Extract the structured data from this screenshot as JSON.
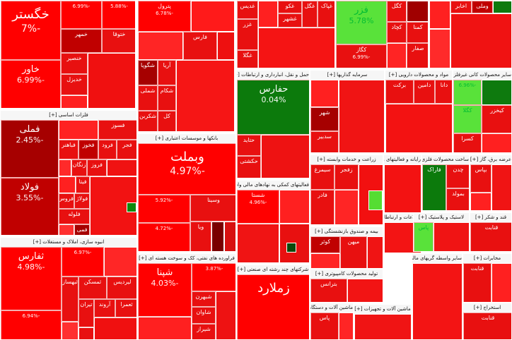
{
  "sectors": {
    "s1": {
      "title": ""
    },
    "s2": {
      "title": ""
    },
    "s3": {
      "title": "فلزات اساسی [+]"
    },
    "s4": {
      "title": "بانکها و موسسات اعتباری [+]"
    },
    "s5": {
      "title": "انبوه سازی، املاک و مستغلات [+]"
    },
    "s6": {
      "title": "فراورده های نفتی، کک و سوخت هسته ای [+]"
    },
    "s7": {
      "title": "استخراج نفت گاز و خدمات جنبی جز اکتشاف [+]"
    },
    "s8": {
      "title": "استخراج کانه های فلزی [+]"
    },
    "s9": {
      "title": "فعالیتهای کمکی به نهادهای مالی واسط [+]"
    },
    "s10": {
      "title": "شرکتهای چند رشته ای صنعتی [+]"
    },
    "s11": {
      "title": "حمل و نقل، انبارداری و ارتباطات [+]"
    },
    "s12": {
      "title": "سرمایه گذاریها [+]"
    },
    "s13": {
      "title": "مواد و محصولات دارویی [+]"
    },
    "s14": {
      "title": "سایر محصولات کانی غیرفلزی [+]"
    },
    "s15": {
      "title": "زراعت و خدمات وابسته [+]"
    },
    "s16": {
      "title": "رایانه و فعالیتهای وابسته [+]"
    },
    "s17": {
      "title": "ساخت محصولات فلزی [+]"
    },
    "s18": {
      "title": "عرضه برق، گاز [+]"
    },
    "s19": {
      "title": "اطلاعات و ارتباطات [+]"
    },
    "s20": {
      "title": "لاستیک و پلاستیک [+]"
    },
    "s21": {
      "title": "قند و شکر [+]"
    },
    "s22": {
      "title": "بیمه و صندوق بازنشستگی [+]"
    },
    "s23": {
      "title": "تولید محصولات کامپیوتری [+]"
    },
    "s24": {
      "title": "سایر واسطه گریهای مالی [+]"
    },
    "s25": {
      "title": "ماشین آلات و دستگاه ها [+]"
    },
    "s26": {
      "title": "ماشین آلات و تجهیزات [+]"
    },
    "s27": {
      "title": "مخابرات [+]"
    },
    "s28": {
      "title": "استخراج [+]"
    },
    "s29": {
      "title": "محصولات غذایی [+]"
    }
  },
  "tiles": [
    {
      "id": "khegostar",
      "name": "خگستر",
      "change": "-7%",
      "tone": "t-red",
      "size": "big"
    },
    {
      "id": "khavar",
      "name": "خاور",
      "change": "-6.99%",
      "tone": "t-red",
      "size": "med"
    },
    {
      "id": "khotoga",
      "name": "ختوقا",
      "change": "",
      "tone": "t-mid",
      "size": "sm"
    },
    {
      "id": "khansar",
      "name": "خنصیر",
      "change": "",
      "tone": "t-mid",
      "size": "sm"
    },
    {
      "id": "khodizel",
      "name": "خدیزل",
      "change": "",
      "tone": "t-mid",
      "size": "sm"
    },
    {
      "id": "khmehr",
      "name": "خمهر",
      "change": "",
      "tone": "t-drk",
      "size": "sm"
    },
    {
      "id": "tile_a1",
      "name": "",
      "change": "-6.99%",
      "tone": "t-red",
      "size": "xs"
    },
    {
      "id": "tile_a2",
      "name": "",
      "change": "-5.88%",
      "tone": "t-red",
      "size": "xs"
    },
    {
      "id": "petrol",
      "name": "پترول",
      "change": "-6.78%",
      "tone": "t-red",
      "size": "sm"
    },
    {
      "id": "fars",
      "name": "فارس",
      "change": "",
      "tone": "t-mid",
      "size": "sm"
    },
    {
      "id": "shegooya",
      "name": "شگویا",
      "change": "",
      "tone": "t-dr2",
      "size": "sm"
    },
    {
      "id": "shekam",
      "name": "شکام",
      "change": "",
      "tone": "t-mid",
      "size": "sm"
    },
    {
      "id": "shamli",
      "name": "شملی",
      "change": "",
      "tone": "t-mid",
      "size": "sm"
    },
    {
      "id": "shekarban",
      "name": "شکربن",
      "change": "",
      "tone": "t-mid",
      "size": "sm"
    },
    {
      "id": "arya",
      "name": "آریا",
      "change": "",
      "tone": "t-mid",
      "size": "sm"
    },
    {
      "id": "kal",
      "name": "کل",
      "change": "",
      "tone": "t-mid",
      "size": "sm"
    },
    {
      "id": "fameli",
      "name": "فملی",
      "change": "-2.45%",
      "tone": "t-dr2",
      "size": "med"
    },
    {
      "id": "foolad",
      "name": "فولاد",
      "change": "-3.55%",
      "tone": "t-drk",
      "size": "med"
    },
    {
      "id": "fasoos",
      "name": "فسوز",
      "change": "",
      "tone": "t-mid",
      "size": "sm"
    },
    {
      "id": "fajr",
      "name": "فجر",
      "change": "",
      "tone": "t-mid",
      "size": "sm"
    },
    {
      "id": "forood",
      "name": "فرود",
      "change": "",
      "tone": "t-mid",
      "size": "sm"
    },
    {
      "id": "fakhooz",
      "name": "فخوز",
      "change": "",
      "tone": "t-drk",
      "size": "sm"
    },
    {
      "id": "fabahonar",
      "name": "فباهنر",
      "change": "",
      "tone": "t-mid",
      "size": "sm"
    },
    {
      "id": "zanjan",
      "name": "زنگان",
      "change": "",
      "tone": "t-mid",
      "size": "sm"
    },
    {
      "id": "frooz",
      "name": "فروز",
      "change": "",
      "tone": "t-mid",
      "size": "sm"
    },
    {
      "id": "fajaba",
      "name": "فجهان",
      "change": "",
      "tone": "t-mid",
      "size": "sm"
    },
    {
      "id": "fravs",
      "name": "فروس",
      "change": "",
      "tone": "t-mid",
      "size": "sm"
    },
    {
      "id": "fabta",
      "name": "فیتا",
      "change": "",
      "tone": "t-mid",
      "size": "sm"
    },
    {
      "id": "folaj",
      "name": "فولاژ",
      "change": "",
      "tone": "t-mid",
      "size": "sm"
    },
    {
      "id": "folala",
      "name": "فلوله",
      "change": "",
      "tone": "t-mid",
      "size": "sm"
    },
    {
      "id": "fami",
      "name": "فمی",
      "change": "",
      "tone": "t-dr2",
      "size": "sm"
    },
    {
      "id": "vabemellat",
      "name": "وبملت",
      "change": "-4.97%",
      "tone": "t-red",
      "size": "big"
    },
    {
      "id": "vasina",
      "name": "وسینا",
      "change": "",
      "tone": "t-mid",
      "size": "sm"
    },
    {
      "id": "vatejarat",
      "name": "",
      "change": "-5.92%",
      "tone": "t-red",
      "size": "xs"
    },
    {
      "id": "vasaderat",
      "name": "",
      "change": "-4.72%",
      "tone": "t-red",
      "size": "xs"
    },
    {
      "id": "vabank",
      "name": "وبانک",
      "change": "",
      "tone": "t-mid",
      "size": "sm"
    },
    {
      "id": "vaya",
      "name": "ویا",
      "change": "",
      "tone": "t-mid",
      "size": "sm"
    },
    {
      "id": "sefars",
      "name": "ثفارس",
      "change": "-4.98%",
      "tone": "t-red",
      "size": "med"
    },
    {
      "id": "tile_b1",
      "name": "",
      "change": "-6.97%",
      "tone": "t-red",
      "size": "xs"
    },
    {
      "id": "teskan",
      "name": "ثمسکن",
      "change": "",
      "tone": "t-mid",
      "size": "sm"
    },
    {
      "id": "sabad",
      "name": "ثبهساز",
      "change": "",
      "tone": "t-mid",
      "size": "sm"
    },
    {
      "id": "arvand",
      "name": "آروند",
      "change": "",
      "tone": "t-mid",
      "size": "sm"
    },
    {
      "id": "nomra",
      "name": "ثعمرا",
      "change": "",
      "tone": "t-mid",
      "size": "sm"
    },
    {
      "id": "tiran",
      "name": "تیران",
      "change": "",
      "tone": "t-mid",
      "size": "sm"
    },
    {
      "id": "kerman",
      "name": "",
      "change": "-6.94%",
      "tone": "t-red",
      "size": "xs"
    },
    {
      "id": "lidis",
      "name": "لیردیس",
      "change": "",
      "tone": "t-mid",
      "size": "sm"
    },
    {
      "id": "shiraz",
      "name": "شبندر",
      "change": "",
      "tone": "t-mid",
      "size": "sm"
    },
    {
      "id": "shpna",
      "name": "شپنا",
      "change": "-4.03%",
      "tone": "t-red",
      "size": "med"
    },
    {
      "id": "shavan",
      "name": "شاوان",
      "change": "",
      "tone": "t-mid",
      "size": "sm"
    },
    {
      "id": "shebehran",
      "name": "شبهرن",
      "change": "",
      "tone": "t-mid",
      "size": "sm"
    },
    {
      "id": "shiraz2",
      "name": "شیراز",
      "change": "",
      "tone": "t-mid",
      "size": "sm"
    },
    {
      "id": "tile_c1",
      "name": "",
      "change": "-3.87%",
      "tone": "t-red",
      "size": "xs"
    },
    {
      "id": "gadis",
      "name": "غدیس",
      "change": "",
      "tone": "t-mid",
      "size": "sm"
    },
    {
      "id": "ghakoo",
      "name": "غکو",
      "change": "",
      "tone": "t-mid",
      "size": "sm"
    },
    {
      "id": "gheshahar",
      "name": "غشهر",
      "change": "",
      "tone": "t-mid",
      "size": "sm"
    },
    {
      "id": "ghegol",
      "name": "غگل",
      "change": "",
      "tone": "t-mid",
      "size": "sm"
    },
    {
      "id": "ghazar",
      "name": "غزر",
      "change": "",
      "tone": "t-mid",
      "size": "sm"
    },
    {
      "id": "gheng",
      "name": "غگلا",
      "change": "",
      "tone": "t-mid",
      "size": "sm"
    },
    {
      "id": "ghepak",
      "name": "غپاک",
      "change": "",
      "tone": "t-mid",
      "size": "sm"
    },
    {
      "id": "fazar",
      "name": "فزر",
      "change": "5.78%",
      "tone": "t-lgr",
      "size": "med"
    },
    {
      "id": "kamna",
      "name": "کمنا",
      "change": "",
      "tone": "t-mid",
      "size": "sm"
    },
    {
      "id": "kagol",
      "name": "کگل",
      "change": "",
      "tone": "t-mid",
      "size": "sm"
    },
    {
      "id": "kchad",
      "name": "کچاد",
      "change": "",
      "tone": "t-mid",
      "size": "sm"
    },
    {
      "id": "kgaz",
      "name": "کگاز",
      "change": "-6.99%",
      "tone": "t-mid",
      "size": "xs"
    },
    {
      "id": "safar",
      "name": "صفار",
      "change": "",
      "tone": "t-mid",
      "size": "sm"
    },
    {
      "id": "hafars",
      "name": "حفارس",
      "change": "0.04%",
      "tone": "t-grn",
      "size": "med"
    },
    {
      "id": "hakeshti",
      "name": "حکشتی",
      "change": "",
      "tone": "t-mid",
      "size": "sm"
    },
    {
      "id": "hajabad",
      "name": "حتاید",
      "change": "",
      "tone": "t-mid",
      "size": "sm"
    },
    {
      "id": "shahr",
      "name": "شهر",
      "change": "",
      "tone": "t-dr2",
      "size": "sm"
    },
    {
      "id": "sadabir",
      "name": "سدبیر",
      "change": "",
      "tone": "t-mid",
      "size": "sm"
    },
    {
      "id": "barkat",
      "name": "برکت",
      "change": "",
      "tone": "t-mid",
      "size": "sm"
    },
    {
      "id": "damin",
      "name": "دامین",
      "change": "",
      "tone": "t-mid",
      "size": "sm"
    },
    {
      "id": "dana",
      "name": "دانا",
      "change": "",
      "tone": "t-mid",
      "size": "sm"
    },
    {
      "id": "kegol2",
      "name": "کگلا",
      "change": "",
      "tone": "t-lgr",
      "size": "sm"
    },
    {
      "id": "kekhazar",
      "name": "کیخزر",
      "change": "",
      "tone": "t-mid",
      "size": "sm"
    },
    {
      "id": "kesra",
      "name": "کسرا",
      "change": "",
      "tone": "t-mid",
      "size": "sm"
    },
    {
      "id": "kepasa",
      "name": "",
      "change": "1.08%",
      "tone": "t-lgr",
      "size": "xs"
    },
    {
      "id": "kama",
      "name": "",
      "change": "-6.96%",
      "tone": "t-red",
      "size": "xs"
    },
    {
      "id": "shasta",
      "name": "شستا",
      "change": "-4.96%",
      "tone": "t-red",
      "size": "big"
    },
    {
      "id": "zemalard",
      "name": "زملارد",
      "change": "",
      "tone": "t-mid",
      "size": "sm"
    },
    {
      "id": "sasarg",
      "name": "سیمرغ",
      "change": "",
      "tone": "t-mid",
      "size": "sm"
    },
    {
      "id": "zafajar",
      "name": "زفجر",
      "change": "",
      "tone": "t-mid",
      "size": "sm"
    },
    {
      "id": "fader",
      "name": "فادر",
      "change": "1.8%",
      "tone": "t-grn",
      "size": "xs"
    },
    {
      "id": "farak",
      "name": "فاراک",
      "change": "",
      "tone": "t-mid",
      "size": "sm"
    },
    {
      "id": "chadan",
      "name": "چدن",
      "change": "",
      "tone": "t-mid",
      "size": "sm"
    },
    {
      "id": "bemuel",
      "name": "بمولد",
      "change": "",
      "tone": "t-mid",
      "size": "sm"
    },
    {
      "id": "bepars",
      "name": "بپاس",
      "change": "",
      "tone": "t-drk",
      "size": "sm"
    },
    {
      "id": "koral",
      "name": "کوثر",
      "change": "",
      "tone": "t-mid",
      "size": "sm"
    },
    {
      "id": "mihan",
      "name": "میهن",
      "change": "",
      "tone": "t-mid",
      "size": "sm"
    },
    {
      "id": "berantas",
      "name": "بترانس",
      "change": "",
      "tone": "t-mid",
      "size": "sm"
    },
    {
      "id": "pas",
      "name": "پاس",
      "change": "",
      "tone": "t-lgr",
      "size": "sm"
    },
    {
      "id": "qenabat",
      "name": "قنابت",
      "change": "",
      "tone": "t-mid",
      "size": "sm"
    },
    {
      "id": "akhaber",
      "name": "اخابر",
      "change": "",
      "tone": "t-mid",
      "size": "sm"
    },
    {
      "id": "vamli",
      "name": "وملی",
      "change": "",
      "tone": "t-mid",
      "size": "sm"
    },
    {
      "id": "sedor",
      "name": "سدور",
      "change": "",
      "tone": "t-mid",
      "size": "sm"
    },
    {
      "id": "safa",
      "name": "صفا",
      "change": "",
      "tone": "t-drk",
      "size": "sm"
    }
  ]
}
